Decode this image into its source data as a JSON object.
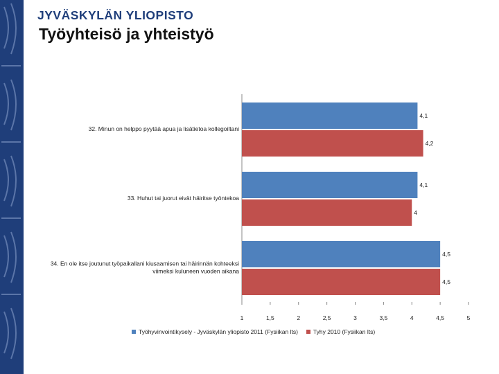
{
  "header": {
    "brand": "JYVÄSKYLÄN YLIOPISTO",
    "title": "Työyhteisö ja yhteistyö"
  },
  "colors": {
    "band": "#1f3e7a",
    "series1": "#4f81bd",
    "series2": "#c0504d",
    "axis": "#888888"
  },
  "chart_data": {
    "type": "bar",
    "orientation": "horizontal",
    "categories": [
      [
        "32. Minun on helppo pyytää apua ja lisätietoa kollegoiltani"
      ],
      [
        "33. Huhut tai juorut eivät häiritse työntekoa"
      ],
      [
        "34. En ole itse joutunut työpaikallani kiusaamisen tai häirinnän kohteeksi",
        "viimeksi kuluneen vuoden aikana"
      ]
    ],
    "series": [
      {
        "name": "Työhyvinvointikysely - Jyväskylän yliopisto 2011 (Fysiikan lts)",
        "values": [
          4.1,
          4.1,
          4.5
        ],
        "labels": [
          "4,1",
          "4,1",
          "4,5"
        ]
      },
      {
        "name": "Tyhy 2010 (Fysiikan lts)",
        "values": [
          4.2,
          4.0,
          4.5
        ],
        "labels": [
          "4,2",
          "4",
          "4,5"
        ]
      }
    ],
    "xlim": [
      1,
      5
    ],
    "ticks": [
      1,
      1.5,
      2,
      2.5,
      3,
      3.5,
      4,
      4.5,
      5
    ],
    "tick_labels": [
      "1",
      "1,5",
      "2",
      "2,5",
      "3",
      "3,5",
      "4",
      "4,5",
      "5"
    ],
    "grid": false,
    "legend_position": "bottom",
    "title": "",
    "xlabel": "",
    "ylabel": ""
  }
}
